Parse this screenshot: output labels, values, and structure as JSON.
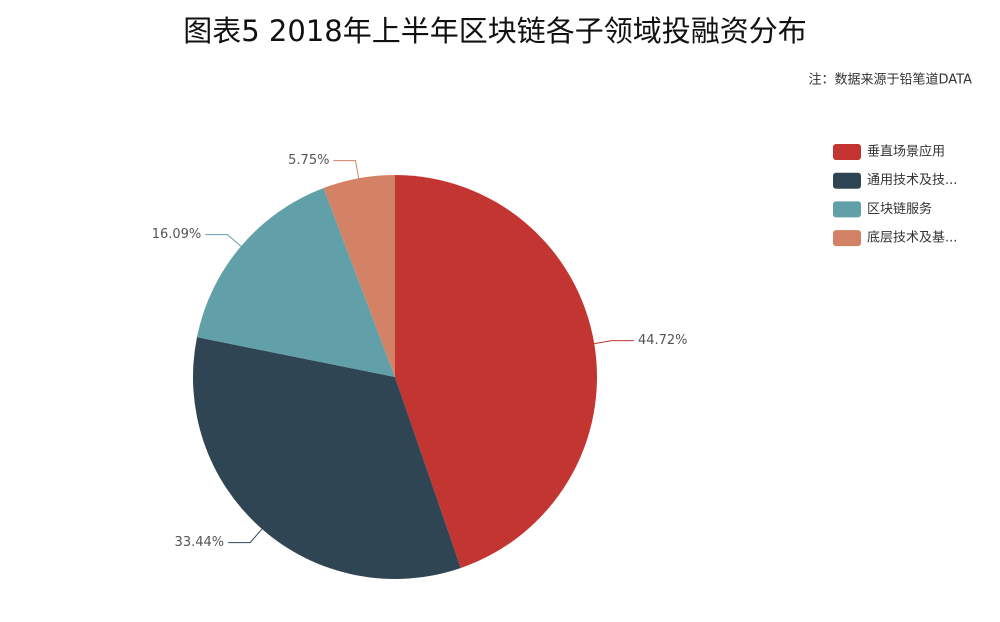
{
  "chart_data": {
    "type": "pie",
    "title": "图表5 2018年上半年区块链各子领域投融资分布",
    "note": "注：数据来源于铅笔道DATA",
    "categories": [
      "垂直场景应用",
      "通用技术及技...",
      "区块链服务",
      "底层技术及基..."
    ],
    "values": [
      44.72,
      33.44,
      16.09,
      5.75
    ],
    "value_labels": [
      "44.72%",
      "33.44%",
      "16.09%",
      "5.75%"
    ],
    "colors": [
      "#c23531",
      "#2f4554",
      "#61a0a8",
      "#d48265"
    ],
    "legend": "top-right"
  }
}
